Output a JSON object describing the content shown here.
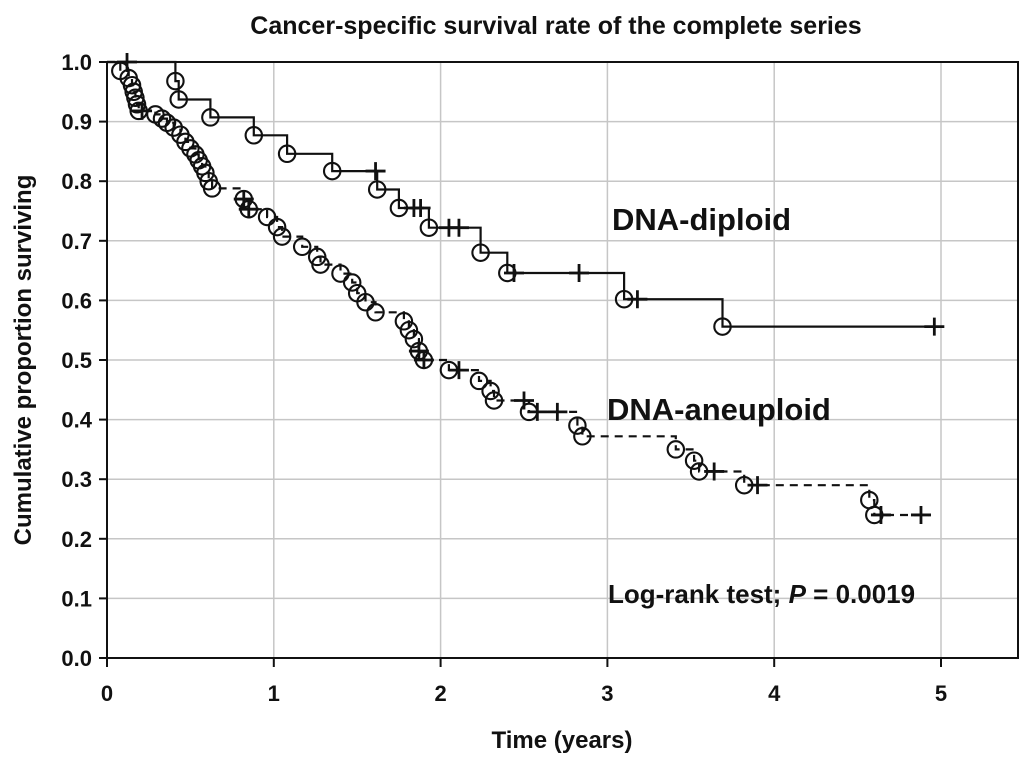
{
  "figure": {
    "title": "Cancer-specific survival rate of the complete series",
    "x_axis": {
      "label": "Time (years)",
      "ticks": [
        "0",
        "1",
        "2",
        "3",
        "4",
        "5"
      ]
    },
    "y_axis": {
      "label": "Cumulative proportion surviving",
      "ticks": [
        "0.0",
        "0.1",
        "0.2",
        "0.3",
        "0.4",
        "0.5",
        "0.6",
        "0.7",
        "0.8",
        "0.9",
        "1.0"
      ]
    },
    "annotations": {
      "diploid_label": "DNA-diploid",
      "aneuploid_label": "DNA-aneuploid",
      "logrank_prefix": "Log-rank test; ",
      "logrank_p": "P",
      "logrank_value": " = 0.0019"
    },
    "colors": {
      "curve": "#111111",
      "gridline": "#c6c6c6",
      "background": "#ffffff",
      "frame": "#111111"
    }
  },
  "chart_data": {
    "type": "line",
    "subtype": "kaplan-meier-step-curves",
    "title": "Cancer-specific survival rate of the complete series",
    "xlabel": "Time (years)",
    "ylabel": "Cumulative proportion surviving",
    "xlim": [
      0,
      5.45
    ],
    "ylim": [
      0.0,
      1.0
    ],
    "x_ticks": [
      0,
      1,
      2,
      3,
      4,
      5
    ],
    "y_ticks": [
      0.0,
      0.1,
      0.2,
      0.3,
      0.4,
      0.5,
      0.6,
      0.7,
      0.8,
      0.9,
      1.0
    ],
    "grid": true,
    "legend_position": "text labels inside plot",
    "annotation": "Log-rank test; P = 0.0019",
    "marker_legend": {
      "circle": "event (cancer death)",
      "plus": "censored observation"
    },
    "series": [
      {
        "name": "DNA-diploid",
        "line_style": "solid",
        "start": [
          0,
          1.0
        ],
        "end_t": 4.96,
        "drops": [
          [
            0.41,
            0.968
          ],
          [
            0.43,
            0.937
          ],
          [
            0.62,
            0.907
          ],
          [
            0.88,
            0.877
          ],
          [
            1.08,
            0.846
          ],
          [
            1.35,
            0.817
          ],
          [
            1.62,
            0.786
          ],
          [
            1.75,
            0.755
          ],
          [
            1.93,
            0.722
          ],
          [
            2.24,
            0.68
          ],
          [
            2.4,
            0.646
          ],
          [
            3.1,
            0.602
          ],
          [
            3.69,
            0.556
          ]
        ],
        "censored": [
          [
            0.12,
            1.0
          ],
          [
            1.61,
            0.817
          ],
          [
            1.84,
            0.755
          ],
          [
            1.88,
            0.755
          ],
          [
            2.05,
            0.722
          ],
          [
            2.11,
            0.722
          ],
          [
            2.44,
            0.646
          ],
          [
            2.83,
            0.646
          ],
          [
            3.18,
            0.602
          ],
          [
            4.96,
            0.556
          ]
        ]
      },
      {
        "name": "DNA-aneuploid",
        "line_style": "dashed",
        "start": [
          0,
          1.0
        ],
        "end_t": 4.93,
        "drops": [
          [
            0.08,
            0.985
          ],
          [
            0.13,
            0.973
          ],
          [
            0.15,
            0.961
          ],
          [
            0.16,
            0.95
          ],
          [
            0.17,
            0.94
          ],
          [
            0.18,
            0.929
          ],
          [
            0.19,
            0.918
          ],
          [
            0.29,
            0.912
          ],
          [
            0.33,
            0.905
          ],
          [
            0.36,
            0.898
          ],
          [
            0.4,
            0.89
          ],
          [
            0.44,
            0.878
          ],
          [
            0.47,
            0.866
          ],
          [
            0.5,
            0.855
          ],
          [
            0.53,
            0.845
          ],
          [
            0.55,
            0.835
          ],
          [
            0.57,
            0.825
          ],
          [
            0.59,
            0.814
          ],
          [
            0.61,
            0.8
          ],
          [
            0.63,
            0.788
          ],
          [
            0.82,
            0.77
          ],
          [
            0.85,
            0.753
          ],
          [
            0.96,
            0.74
          ],
          [
            1.02,
            0.723
          ],
          [
            1.05,
            0.707
          ],
          [
            1.17,
            0.69
          ],
          [
            1.26,
            0.673
          ],
          [
            1.28,
            0.66
          ],
          [
            1.4,
            0.645
          ],
          [
            1.47,
            0.63
          ],
          [
            1.5,
            0.612
          ],
          [
            1.55,
            0.597
          ],
          [
            1.61,
            0.58
          ],
          [
            1.78,
            0.565
          ],
          [
            1.81,
            0.55
          ],
          [
            1.84,
            0.535
          ],
          [
            1.87,
            0.515
          ],
          [
            1.9,
            0.5
          ],
          [
            2.05,
            0.483
          ],
          [
            2.23,
            0.465
          ],
          [
            2.3,
            0.448
          ],
          [
            2.32,
            0.432
          ],
          [
            2.53,
            0.413
          ],
          [
            2.82,
            0.39
          ],
          [
            2.85,
            0.372
          ],
          [
            3.41,
            0.35
          ],
          [
            3.52,
            0.331
          ],
          [
            3.55,
            0.313
          ],
          [
            3.82,
            0.29
          ],
          [
            4.57,
            0.265
          ],
          [
            4.6,
            0.24
          ]
        ],
        "censored": [
          [
            0.21,
            0.918
          ],
          [
            0.82,
            0.77
          ],
          [
            0.85,
            0.753
          ],
          [
            1.87,
            0.515
          ],
          [
            1.9,
            0.5
          ],
          [
            2.11,
            0.483
          ],
          [
            2.5,
            0.432
          ],
          [
            2.58,
            0.413
          ],
          [
            2.7,
            0.413
          ],
          [
            3.64,
            0.313
          ],
          [
            3.9,
            0.29
          ],
          [
            4.64,
            0.24
          ],
          [
            4.88,
            0.24
          ]
        ]
      }
    ]
  }
}
